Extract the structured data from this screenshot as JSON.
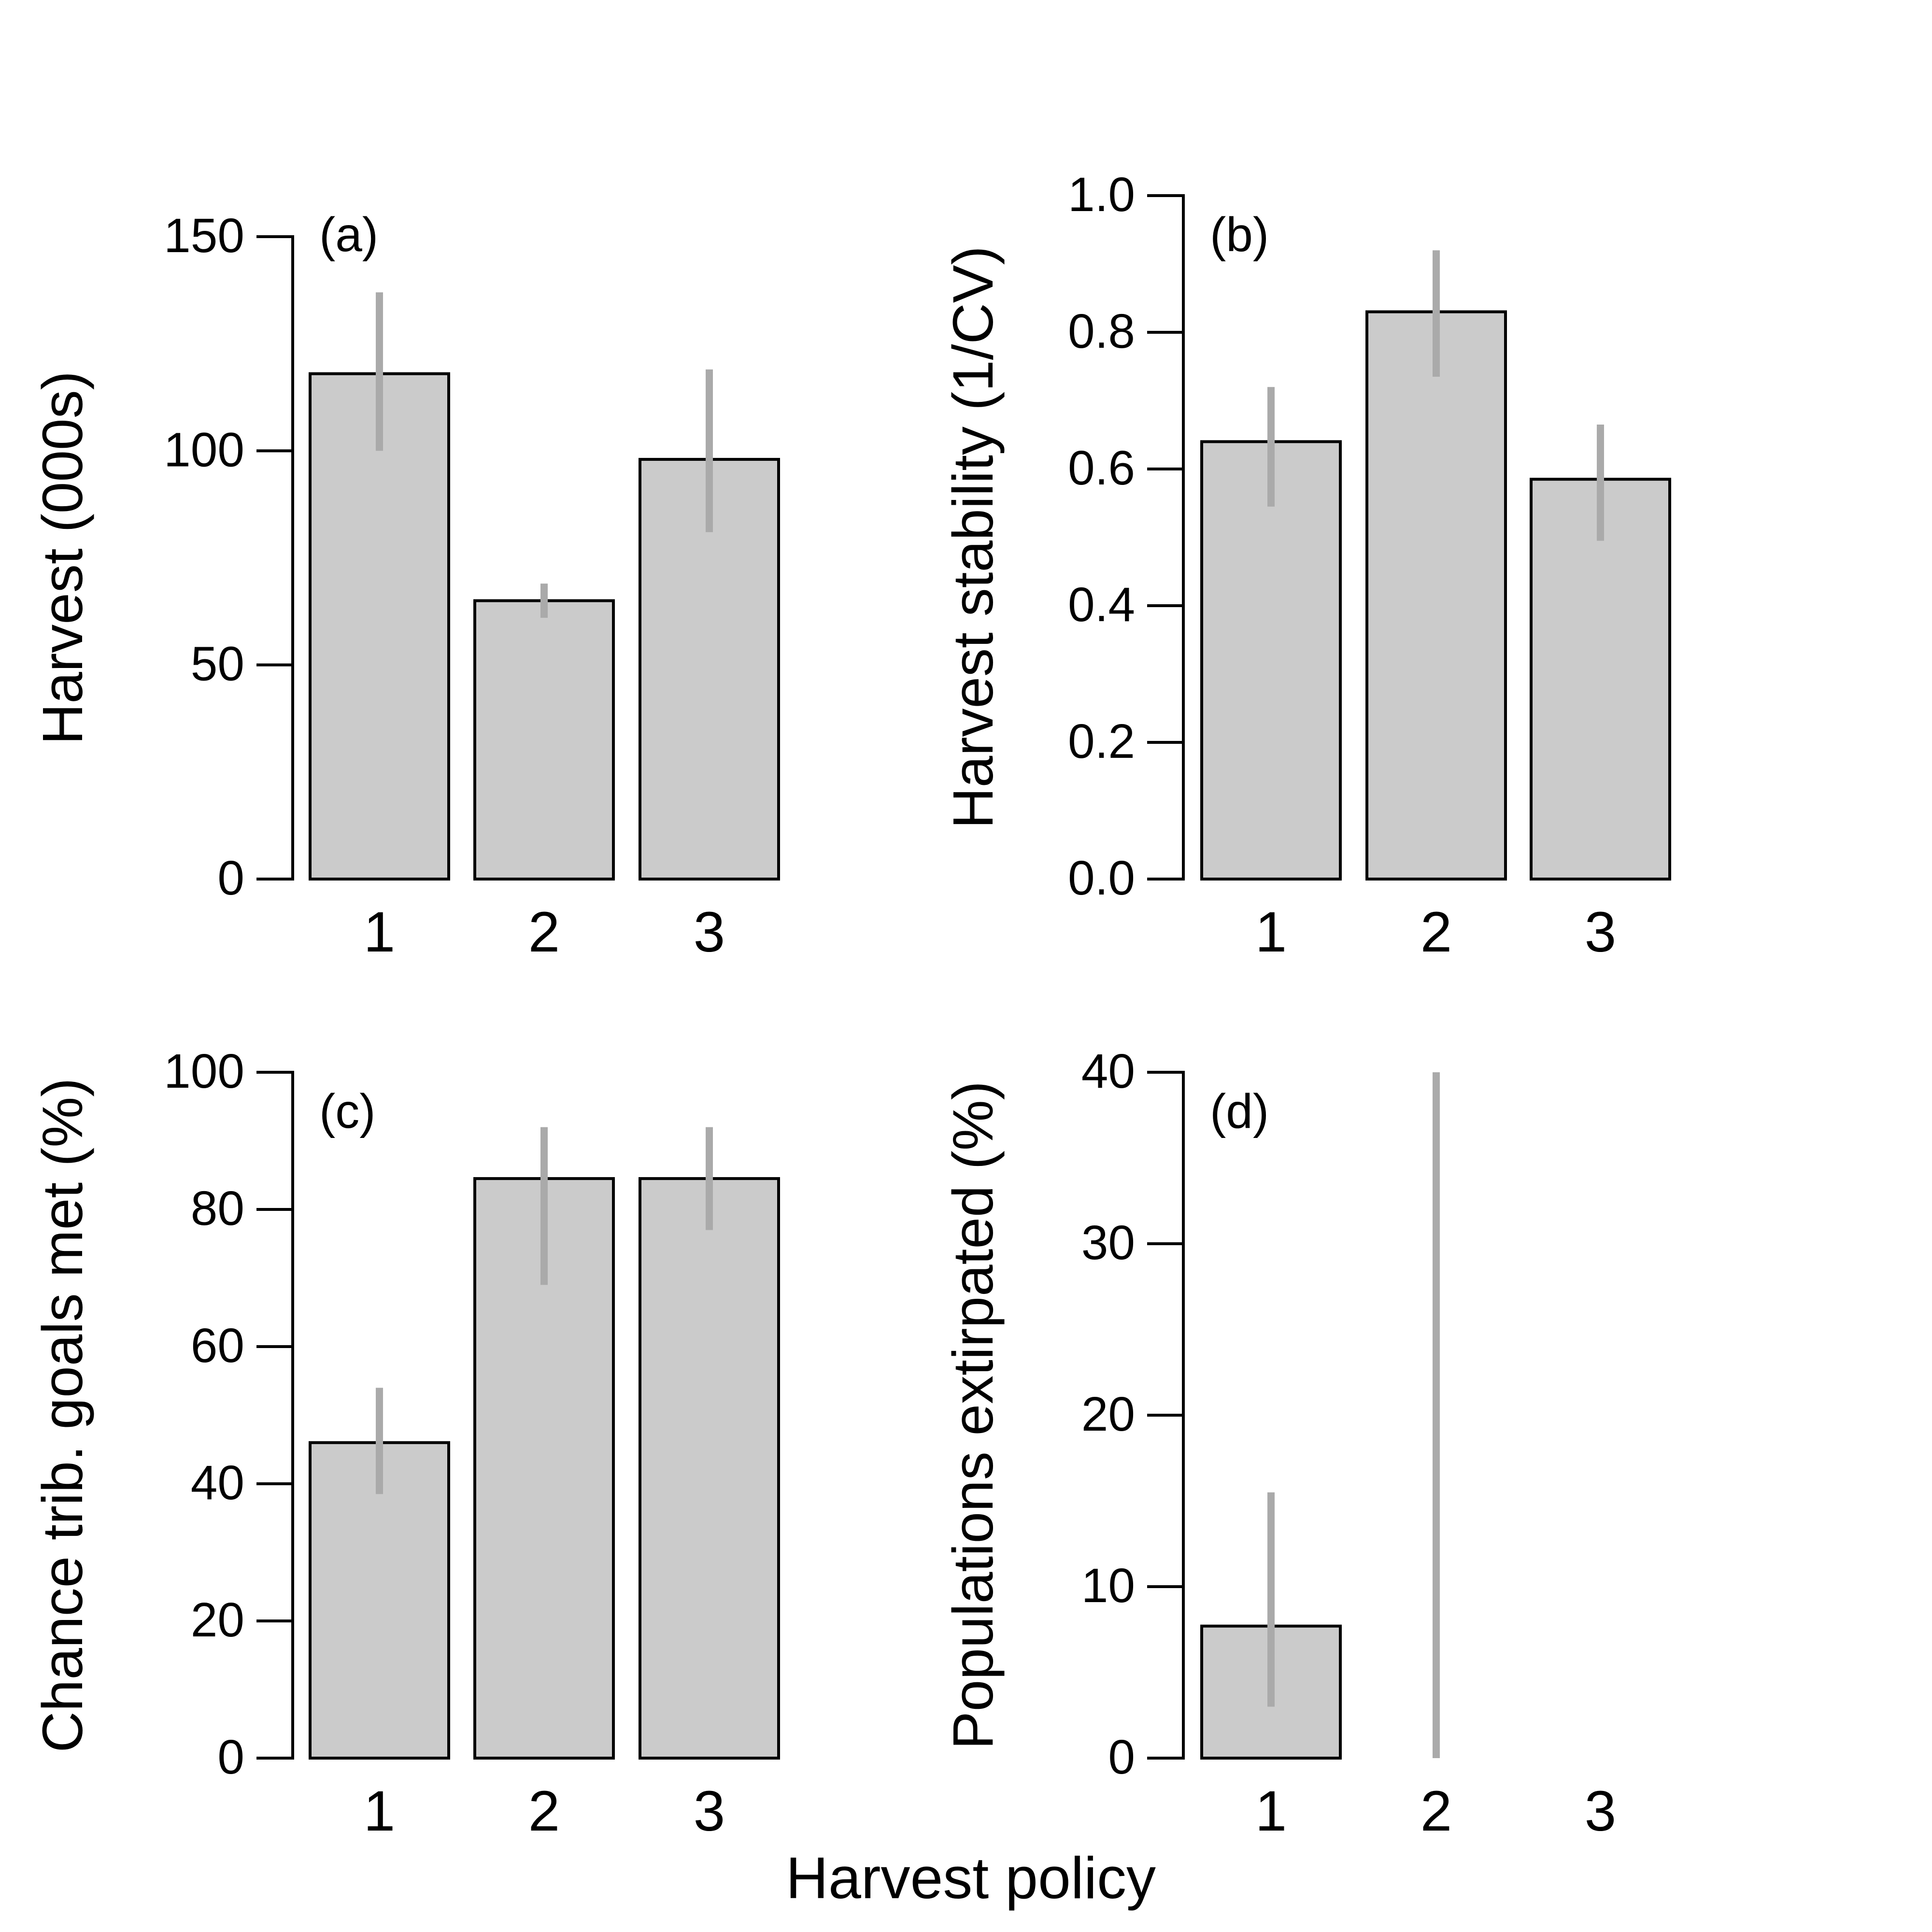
{
  "common_xlabel": "Harvest policy",
  "chart_data": [
    {
      "type": "bar",
      "panel_label": "(a)",
      "categories": [
        "1",
        "2",
        "3"
      ],
      "values": [
        118,
        65,
        98
      ],
      "errors_low": [
        100,
        61,
        81
      ],
      "errors_high": [
        137,
        69,
        119
      ],
      "xlabel": "",
      "ylabel": "Harvest (000s)",
      "ylim": [
        0,
        150
      ],
      "yticks": [
        0,
        50,
        100,
        150
      ],
      "grid": false,
      "colors": {
        "bar_fill": "#cbcbcb",
        "bar_stroke": "#000000",
        "error_bar": "#aaaaaa"
      }
    },
    {
      "type": "bar",
      "panel_label": "(b)",
      "categories": [
        "1",
        "2",
        "3"
      ],
      "values": [
        0.64,
        0.83,
        0.585
      ],
      "errors_low": [
        0.545,
        0.735,
        0.495
      ],
      "errors_high": [
        0.72,
        0.92,
        0.665
      ],
      "xlabel": "",
      "ylabel": "Harvest stability (1/CV)",
      "ylim": [
        0,
        1
      ],
      "yticks": [
        "0.0",
        "0.2",
        "0.4",
        "0.6",
        "0.8",
        "1.0"
      ],
      "grid": false,
      "colors": {
        "bar_fill": "#cbcbcb",
        "bar_stroke": "#000000",
        "error_bar": "#aaaaaa"
      }
    },
    {
      "type": "bar",
      "panel_label": "(c)",
      "categories": [
        "1",
        "2",
        "3"
      ],
      "values": [
        46,
        84.5,
        84.5
      ],
      "errors_low": [
        38.5,
        69,
        77
      ],
      "errors_high": [
        54,
        92,
        92
      ],
      "xlabel": "",
      "ylabel": "Chance trib. goals met (%)",
      "ylim": [
        0,
        100
      ],
      "yticks": [
        0,
        20,
        40,
        60,
        80,
        100
      ],
      "grid": false,
      "colors": {
        "bar_fill": "#cbcbcb",
        "bar_stroke": "#000000",
        "error_bar": "#aaaaaa"
      }
    },
    {
      "type": "bar",
      "panel_label": "(d)",
      "categories": [
        "1",
        "2",
        "3"
      ],
      "values": [
        7.7,
        0,
        0
      ],
      "errors_low": [
        3,
        0,
        0
      ],
      "errors_high": [
        15.5,
        40,
        0
      ],
      "xlabel": "",
      "ylabel": "Populations extirpated (%)",
      "ylim": [
        0,
        40
      ],
      "yticks": [
        0,
        10,
        20,
        30,
        40
      ],
      "grid": false,
      "colors": {
        "bar_fill": "#cbcbcb",
        "bar_stroke": "#000000",
        "error_bar": "#aaaaaa"
      }
    }
  ]
}
